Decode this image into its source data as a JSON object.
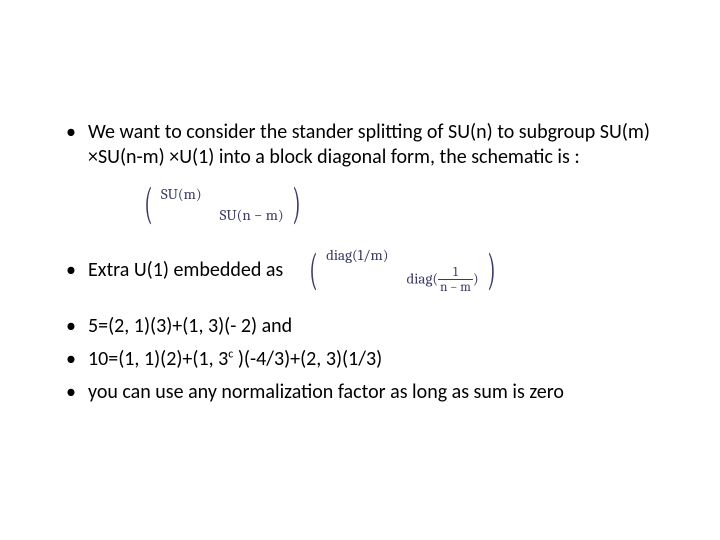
{
  "text_color": "#000000",
  "math_color": "#3a3a6a",
  "background_color": "#ffffff",
  "font_size_body": 20,
  "font_size_math": 15,
  "bullet1": "We want to consider the stander splitting of SU(n) to subgroup SU(m) ×SU(n-m) ×U(1) into a block diagonal form, the schematic is :",
  "matrix1": {
    "tl": "SU(m)",
    "br": "SU(n − m)"
  },
  "bullet2_label": "Extra U(1) embedded as",
  "matrix2": {
    "tl_prefix": "diag(",
    "tl_num": "1",
    "tl_den": "m",
    "tl_suffix": ")",
    "br_prefix": "diag(",
    "br_frac_num": "1",
    "br_frac_den": "n − m",
    "br_suffix": ")"
  },
  "bullet3": " 5=(2, 1)(3)+(1, 3)(- 2) and",
  "bullet4_pre": "10=(1, 1)(2)+(1, 3",
  "bullet4_sup": "c",
  "bullet4_post": " )(-4/3)+(2, 3)(1/3)",
  "bullet5": "  you can use any normalization factor as long as sum is zero"
}
